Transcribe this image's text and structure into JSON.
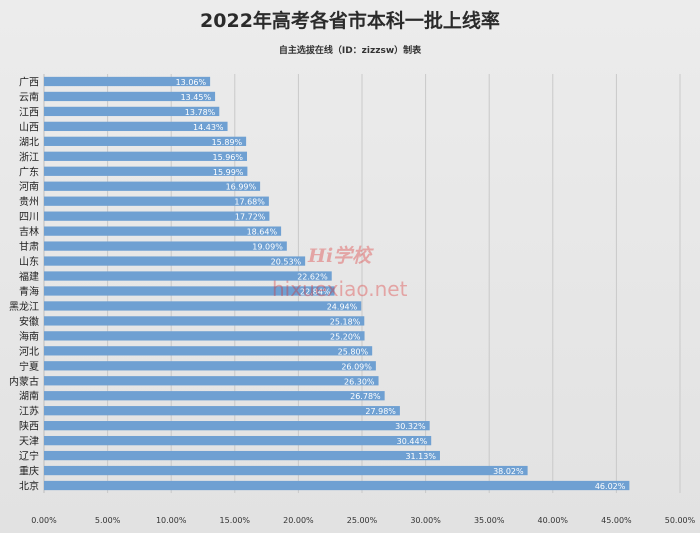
{
  "chart_data": {
    "type": "bar",
    "orientation": "horizontal",
    "title": "2022年高考各省市本科一批上线率",
    "subtitle": "自主选拔在线（ID：zizzsw）制表",
    "categories": [
      "广西",
      "云南",
      "江西",
      "山西",
      "湖北",
      "浙江",
      "广东",
      "河南",
      "贵州",
      "四川",
      "吉林",
      "甘肃",
      "山东",
      "福建",
      "青海",
      "黑龙江",
      "安徽",
      "海南",
      "河北",
      "宁夏",
      "内蒙古",
      "湖南",
      "江苏",
      "陕西",
      "天津",
      "辽宁",
      "重庆",
      "北京"
    ],
    "values": [
      13.06,
      13.45,
      13.78,
      14.43,
      15.89,
      15.96,
      15.99,
      16.99,
      17.68,
      17.72,
      18.64,
      19.09,
      20.53,
      22.62,
      22.84,
      24.94,
      25.18,
      25.2,
      25.8,
      26.09,
      26.3,
      26.78,
      27.98,
      30.32,
      30.44,
      31.13,
      38.02,
      46.02
    ],
    "value_labels": [
      "13.06%",
      "13.45%",
      "13.78%",
      "14.43%",
      "15.89%",
      "15.96%",
      "15.99%",
      "16.99%",
      "17.68%",
      "17.72%",
      "18.64%",
      "19.09%",
      "20.53%",
      "22.62%",
      "22.84%",
      "24.94%",
      "25.18%",
      "25.20%",
      "25.80%",
      "26.09%",
      "26.30%",
      "26.78%",
      "27.98%",
      "30.32%",
      "30.44%",
      "31.13%",
      "38.02%",
      "46.02%"
    ],
    "xlim": [
      0,
      50
    ],
    "x_ticks": [
      0,
      5,
      10,
      15,
      20,
      25,
      30,
      35,
      40,
      45,
      50
    ],
    "x_tick_labels": [
      "0.00%",
      "5.00%",
      "10.00%",
      "15.00%",
      "20.00%",
      "25.00%",
      "30.00%",
      "35.00%",
      "40.00%",
      "45.00%",
      "50.00%"
    ],
    "grid": "vertical",
    "bar_color": "#6fa0d2",
    "label_color": "#ffffff",
    "watermark": "Hi学校 hixuexiao.net"
  }
}
